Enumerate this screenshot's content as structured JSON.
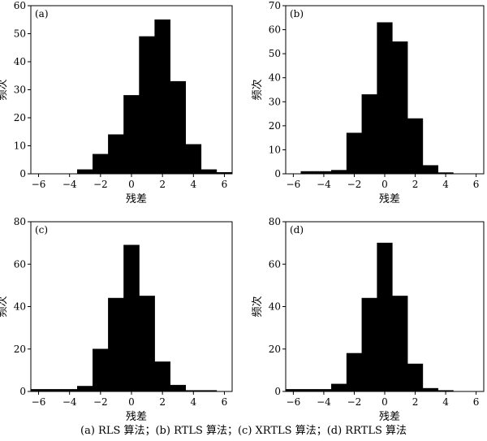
{
  "chart_data": [
    {
      "type": "bar",
      "panel_label": "(a)",
      "xlabel": "残差",
      "ylabel": "频次",
      "xlim": [
        -6.5,
        6.5
      ],
      "ylim": [
        0,
        60
      ],
      "xticks": [
        -6,
        -4,
        -2,
        0,
        2,
        4,
        6
      ],
      "yticks": [
        0,
        10,
        20,
        30,
        40,
        50,
        60
      ],
      "bin_edges": [
        -6.5,
        -5.5,
        -4.5,
        -3.5,
        -2.5,
        -1.5,
        -0.5,
        0.5,
        1.5,
        2.5,
        3.5,
        4.5,
        5.5,
        6.5
      ],
      "values": [
        0,
        0,
        0,
        1.5,
        7,
        14,
        28,
        49,
        55,
        33,
        10.5,
        1.5,
        0.5
      ]
    },
    {
      "type": "bar",
      "panel_label": "(b)",
      "xlabel": "残差",
      "ylabel": "频次",
      "xlim": [
        -6.5,
        6.5
      ],
      "ylim": [
        0,
        70
      ],
      "xticks": [
        -6,
        -4,
        -2,
        0,
        2,
        4,
        6
      ],
      "yticks": [
        0,
        10,
        20,
        30,
        40,
        50,
        60,
        70
      ],
      "bin_edges": [
        -5.5,
        -4.5,
        -3.5,
        -2.5,
        -1.5,
        -0.5,
        0.5,
        1.5,
        2.5,
        3.5,
        4.5
      ],
      "values": [
        1,
        1,
        1.5,
        17,
        33,
        63,
        55,
        23,
        3.5,
        0.5
      ]
    },
    {
      "type": "bar",
      "panel_label": "(c)",
      "xlabel": "残差",
      "ylabel": "频次",
      "xlim": [
        -6.5,
        6.5
      ],
      "ylim": [
        0,
        80
      ],
      "xticks": [
        -6,
        -4,
        -2,
        0,
        2,
        4,
        6
      ],
      "yticks": [
        0,
        20,
        40,
        60,
        80
      ],
      "bin_edges": [
        -6.5,
        -5.5,
        -4.5,
        -3.5,
        -2.5,
        -1.5,
        -0.5,
        0.5,
        1.5,
        2.5,
        3.5,
        4.5,
        5.5,
        6.5
      ],
      "values": [
        1,
        1,
        1,
        2.5,
        20,
        44,
        69,
        45,
        14,
        3,
        0.5,
        0.5,
        0
      ]
    },
    {
      "type": "bar",
      "panel_label": "(d)",
      "xlabel": "残差",
      "ylabel": "频次",
      "xlim": [
        -6.5,
        6.5
      ],
      "ylim": [
        0,
        80
      ],
      "xticks": [
        -6,
        -4,
        -2,
        0,
        2,
        4,
        6
      ],
      "yticks": [
        0,
        20,
        40,
        60,
        80
      ],
      "bin_edges": [
        -6.5,
        -5.5,
        -4.5,
        -3.5,
        -2.5,
        -1.5,
        -0.5,
        0.5,
        1.5,
        2.5,
        3.5,
        4.5,
        5.5,
        6.5
      ],
      "values": [
        1,
        1,
        1,
        3.5,
        18,
        44,
        70,
        45,
        13,
        1.5,
        0.5,
        0,
        0
      ]
    }
  ],
  "caption": "(a) RLS 算法；(b) RTLS 算法；(c) XRTLS 算法；(d) RRTLS 算法"
}
